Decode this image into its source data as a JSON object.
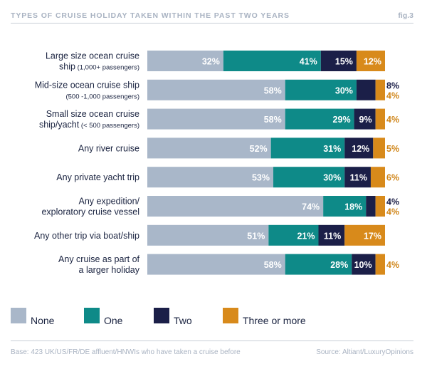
{
  "header": {
    "title": "TYPES OF CRUISE HOLIDAY TAKEN WITHIN THE PAST TWO YEARS",
    "fig": "fig.3"
  },
  "colors": {
    "None": "#a9b7c9",
    "One": "#0e8a88",
    "Two": "#1b1f48",
    "Three or more": "#d88a1b",
    "text": "#1a2340",
    "orange_text": "#d0861a",
    "header_text": "#a9b3c2"
  },
  "chart_data": {
    "type": "bar",
    "orientation": "horizontal",
    "stacked": true,
    "categories": [
      {
        "main": "Large size ocean cruise",
        "sub_main": "ship",
        "sub": "(1,000+ passengers)"
      },
      {
        "main": "Mid-size ocean cruise ship",
        "sub_main": "",
        "sub": "(500 -1,000 passengers)"
      },
      {
        "main": "Small size ocean cruise",
        "sub_main": "ship/yacht",
        "sub": "(< 500 passengers)"
      },
      {
        "main": "Any river cruise",
        "sub_main": "",
        "sub": ""
      },
      {
        "main": "Any private yacht trip",
        "sub_main": "",
        "sub": ""
      },
      {
        "main": "Any expedition/",
        "sub_main": "exploratory cruise vessel",
        "sub": ""
      },
      {
        "main": "Any other trip via boat/ship",
        "sub_main": "",
        "sub": ""
      },
      {
        "main": "Any cruise as part of",
        "sub_main": "a larger holiday",
        "sub": ""
      }
    ],
    "series": [
      {
        "name": "None",
        "values": [
          32,
          58,
          58,
          52,
          53,
          74,
          51,
          58
        ]
      },
      {
        "name": "One",
        "values": [
          41,
          30,
          29,
          31,
          30,
          18,
          21,
          28
        ]
      },
      {
        "name": "Two",
        "values": [
          15,
          8,
          9,
          12,
          11,
          4,
          11,
          10
        ]
      },
      {
        "name": "Three or more",
        "values": [
          12,
          4,
          4,
          5,
          6,
          4,
          17,
          4
        ]
      }
    ],
    "xlim": [
      0,
      100
    ],
    "legend_position": "bottom"
  },
  "legend": [
    {
      "label": "None"
    },
    {
      "label": "One"
    },
    {
      "label": "Two"
    },
    {
      "label": "Three or more"
    }
  ],
  "footer": {
    "base": "Base: 423 UK/US/FR/DE affluent/HNWIs who have taken a cruise before",
    "source": "Source: Altiant/LuxuryOpinions"
  }
}
